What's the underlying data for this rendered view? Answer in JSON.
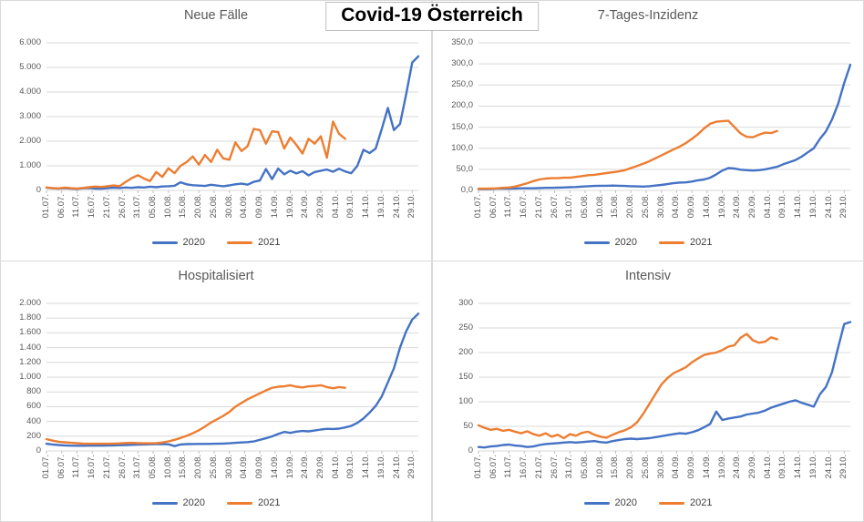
{
  "main_title": "Covid-19 Österreich",
  "colors": {
    "series_2020": "#4472C4",
    "series_2021": "#ED7D31",
    "gridline": "#D9D9D9",
    "tick_mark": "#BFBFBF",
    "axis_text": "#595959",
    "chart_title_text": "#595959"
  },
  "day_step": 2,
  "total_days": 122,
  "x_labels": [
    "01.07.",
    "06.07.",
    "11.07.",
    "16.07.",
    "21.07.",
    "26.07.",
    "31.07.",
    "05.08.",
    "10.08.",
    "15.08.",
    "20.08.",
    "25.08.",
    "30.08.",
    "04.09.",
    "09.09.",
    "14.09.",
    "19.09.",
    "24.09.",
    "29.09.",
    "04.10.",
    "09.10.",
    "14.10.",
    "19.10.",
    "24.10.",
    "29.10."
  ],
  "chart_data": [
    {
      "type": "line",
      "title": "Neue Fälle",
      "ylim": [
        0,
        6000
      ],
      "grid": true,
      "legend_position": "bottom",
      "y_tick_labels": [
        "0",
        "1.000",
        "2.000",
        "3.000",
        "4.000",
        "5.000",
        "6.000"
      ],
      "series": [
        {
          "name": "2020",
          "color": "#4472C4",
          "start_day": 0,
          "values": [
            107,
            85,
            75,
            90,
            70,
            60,
            85,
            95,
            75,
            65,
            90,
            110,
            95,
            120,
            105,
            130,
            120,
            150,
            130,
            160,
            170,
            190,
            330,
            250,
            210,
            195,
            180,
            230,
            195,
            170,
            205,
            250,
            275,
            235,
            350,
            400,
            870,
            460,
            890,
            650,
            800,
            690,
            780,
            610,
            750,
            800,
            850,
            760,
            880,
            770,
            700,
            1000,
            1650,
            1520,
            1700,
            2500,
            3350,
            2450,
            2700,
            3900,
            5200,
            5450
          ]
        },
        {
          "name": "2021",
          "color": "#ED7D31",
          "start_day": 0,
          "values": [
            120,
            95,
            80,
            110,
            90,
            75,
            100,
            130,
            155,
            140,
            170,
            200,
            175,
            350,
            500,
            620,
            480,
            380,
            750,
            550,
            900,
            700,
            1000,
            1150,
            1380,
            1050,
            1440,
            1150,
            1650,
            1300,
            1250,
            1950,
            1600,
            1800,
            2500,
            2450,
            1900,
            2400,
            2370,
            1700,
            2150,
            1850,
            1500,
            2100,
            1900,
            2200,
            1330,
            2800,
            2300,
            2100
          ]
        }
      ]
    },
    {
      "type": "line",
      "title": "7-Tages-Inzidenz",
      "ylim": [
        0,
        350
      ],
      "grid": true,
      "legend_position": "bottom",
      "y_tick_labels": [
        "0,0",
        "50,0",
        "100,0",
        "150,0",
        "200,0",
        "250,0",
        "300,0",
        "350,0"
      ],
      "series": [
        {
          "name": "2020",
          "color": "#4472C4",
          "start_day": 0,
          "values": [
            3,
            3,
            3.5,
            4,
            4,
            4,
            4.5,
            5,
            5,
            5,
            5.5,
            6,
            6,
            6.5,
            7,
            7.5,
            8,
            9,
            10,
            10.5,
            11,
            11,
            11.5,
            11,
            10.5,
            10,
            9.5,
            9,
            10,
            11.5,
            13,
            15,
            17,
            18.5,
            19,
            21,
            24,
            26,
            30,
            38,
            47,
            53,
            52,
            49,
            48,
            47,
            48,
            50,
            53,
            56,
            62,
            67,
            72,
            80,
            90,
            100,
            122,
            140,
            168,
            205,
            255,
            298
          ]
        },
        {
          "name": "2021",
          "color": "#ED7D31",
          "start_day": 0,
          "values": [
            4,
            4,
            4.5,
            5,
            6,
            7,
            9,
            13,
            17,
            22,
            26,
            28,
            29,
            29,
            30,
            30,
            32,
            34,
            36,
            37,
            39,
            41,
            43,
            45,
            48,
            53,
            58,
            63,
            69,
            76,
            83,
            90,
            97,
            104,
            112,
            122,
            133,
            147,
            158,
            163,
            164,
            165,
            150,
            135,
            127,
            126,
            132,
            137,
            136,
            141
          ]
        }
      ]
    },
    {
      "type": "line",
      "title": "Hospitalisiert",
      "ylim": [
        0,
        2000
      ],
      "grid": true,
      "legend_position": "bottom",
      "y_tick_labels": [
        "0",
        "200",
        "400",
        "600",
        "800",
        "1.000",
        "1.200",
        "1.400",
        "1.600",
        "1.800",
        "2.000"
      ],
      "series": [
        {
          "name": "2020",
          "color": "#4472C4",
          "start_day": 0,
          "values": [
            97,
            88,
            80,
            75,
            72,
            70,
            70,
            71,
            72,
            72,
            73,
            75,
            78,
            80,
            83,
            86,
            88,
            90,
            91,
            92,
            90,
            65,
            88,
            92,
            94,
            95,
            95,
            96,
            98,
            100,
            104,
            110,
            115,
            120,
            128,
            150,
            172,
            198,
            230,
            258,
            245,
            262,
            270,
            265,
            276,
            290,
            300,
            298,
            302,
            318,
            340,
            380,
            440,
            520,
            610,
            740,
            930,
            1120,
            1400,
            1620,
            1780,
            1860
          ]
        },
        {
          "name": "2021",
          "color": "#ED7D31",
          "start_day": 0,
          "values": [
            160,
            140,
            125,
            117,
            110,
            105,
            100,
            98,
            97,
            97,
            98,
            100,
            103,
            107,
            110,
            106,
            104,
            104,
            105,
            115,
            130,
            150,
            175,
            205,
            240,
            280,
            330,
            385,
            430,
            475,
            530,
            600,
            650,
            700,
            740,
            780,
            820,
            855,
            870,
            875,
            890,
            870,
            860,
            875,
            880,
            890,
            865,
            850,
            865,
            855
          ]
        }
      ]
    },
    {
      "type": "line",
      "title": "Intensiv",
      "ylim": [
        0,
        300
      ],
      "grid": true,
      "legend_position": "bottom",
      "y_tick_labels": [
        "0",
        "50",
        "100",
        "150",
        "200",
        "250",
        "300"
      ],
      "series": [
        {
          "name": "2020",
          "color": "#4472C4",
          "start_day": 0,
          "values": [
            8,
            7,
            9,
            10,
            12,
            13,
            11,
            10,
            8,
            9,
            12,
            14,
            15,
            16,
            17,
            18,
            17,
            18,
            19,
            20,
            18,
            17,
            20,
            22,
            24,
            25,
            24,
            25,
            26,
            28,
            30,
            32,
            34,
            36,
            35,
            38,
            42,
            48,
            55,
            80,
            63,
            66,
            68,
            70,
            74,
            76,
            78,
            82,
            88,
            92,
            96,
            100,
            103,
            98,
            94,
            90,
            115,
            130,
            160,
            210,
            258,
            262
          ]
        },
        {
          "name": "2021",
          "color": "#ED7D31",
          "start_day": 0,
          "values": [
            52,
            47,
            43,
            45,
            41,
            43,
            39,
            36,
            40,
            34,
            31,
            36,
            29,
            33,
            26,
            34,
            31,
            37,
            39,
            33,
            29,
            27,
            33,
            38,
            42,
            48,
            58,
            75,
            95,
            115,
            135,
            148,
            158,
            164,
            170,
            180,
            188,
            195,
            198,
            200,
            205,
            212,
            215,
            230,
            238,
            225,
            220,
            222,
            231,
            227
          ]
        }
      ]
    }
  ],
  "legend_labels": [
    "2020",
    "2021"
  ]
}
